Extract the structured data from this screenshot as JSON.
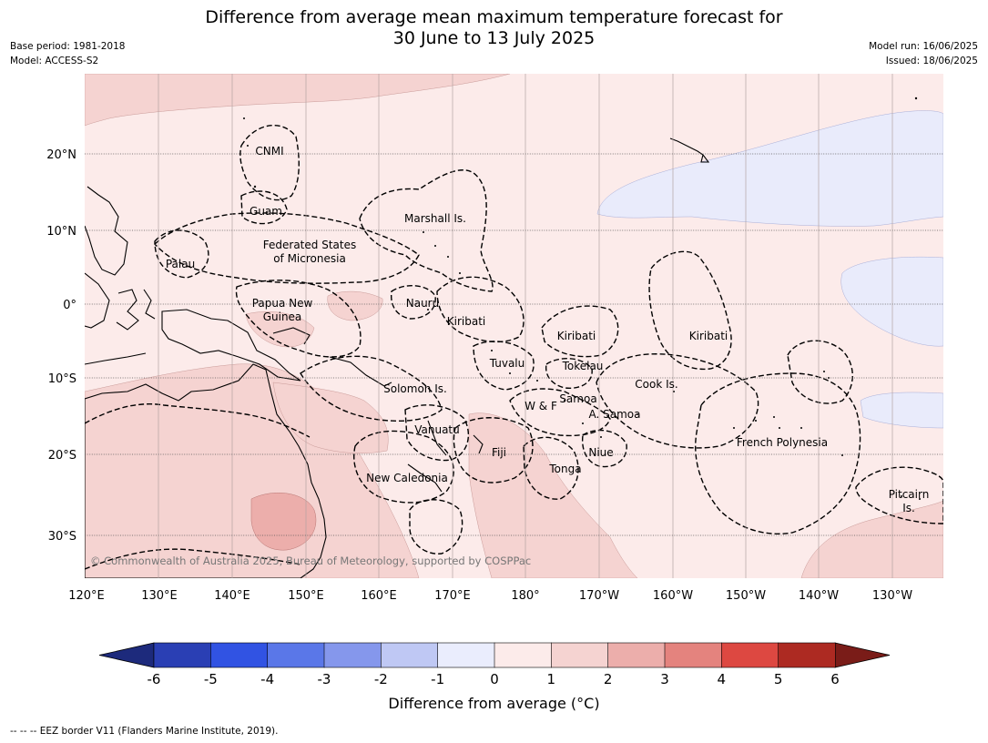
{
  "title": {
    "line1": "Difference from average mean maximum temperature forecast for",
    "line2": "30 June to 13 July 2025"
  },
  "meta": {
    "base_period": "Base period: 1981-2018",
    "model": "Model: ACCESS-S2",
    "model_run": "Model run: 16/06/2025",
    "issued": "Issued: 18/06/2025"
  },
  "credit": "© Commonwealth of Australia 2025, Bureau of Meteorology, supported by COSPPac",
  "footnote": "-- -- -- EEZ border V11 (Flanders Marine Institute, 2019).",
  "colorbar": {
    "title": "Difference from average (°C)",
    "ticks": [
      "-6",
      "-5",
      "-4",
      "-3",
      "-2",
      "-1",
      "0",
      "1",
      "2",
      "3",
      "4",
      "5",
      "6"
    ],
    "colors": [
      "#2a3fb4",
      "#3153e3",
      "#5a77e8",
      "#8597ec",
      "#bfc8f4",
      "#eaedfd",
      "#fcebea",
      "#f5d3d1",
      "#ecaeab",
      "#e4837e",
      "#dd4841",
      "#ad2a22"
    ],
    "under_color": "#1d2a7c",
    "over_color": "#7a1c18"
  },
  "map": {
    "lon_labels": [
      "120°E",
      "130°E",
      "140°E",
      "150°E",
      "160°E",
      "170°E",
      "180°",
      "170°W",
      "160°W",
      "150°W",
      "140°W",
      "130°W"
    ],
    "lat_labels": [
      "20°N",
      "10°N",
      "0°",
      "10°S",
      "20°S",
      "30°S"
    ],
    "regions": [
      "CNMI",
      "Guam",
      "Marshall Is.",
      "Palau",
      "Federated States",
      "of Micronesia",
      "Papua New",
      "Guinea",
      "Nauru",
      "Kiribati",
      "Kiribati",
      "Kiribati",
      "Tuvalu",
      "Tokelau",
      "Cook Is.",
      "Solomon Is.",
      "Samoa",
      "W & F",
      "A. Samoa",
      "Vanuatu",
      "Fiji",
      "Niue",
      "French Polynesia",
      "Tonga",
      "New Caledonia",
      "Pitcairn",
      "Is."
    ]
  }
}
